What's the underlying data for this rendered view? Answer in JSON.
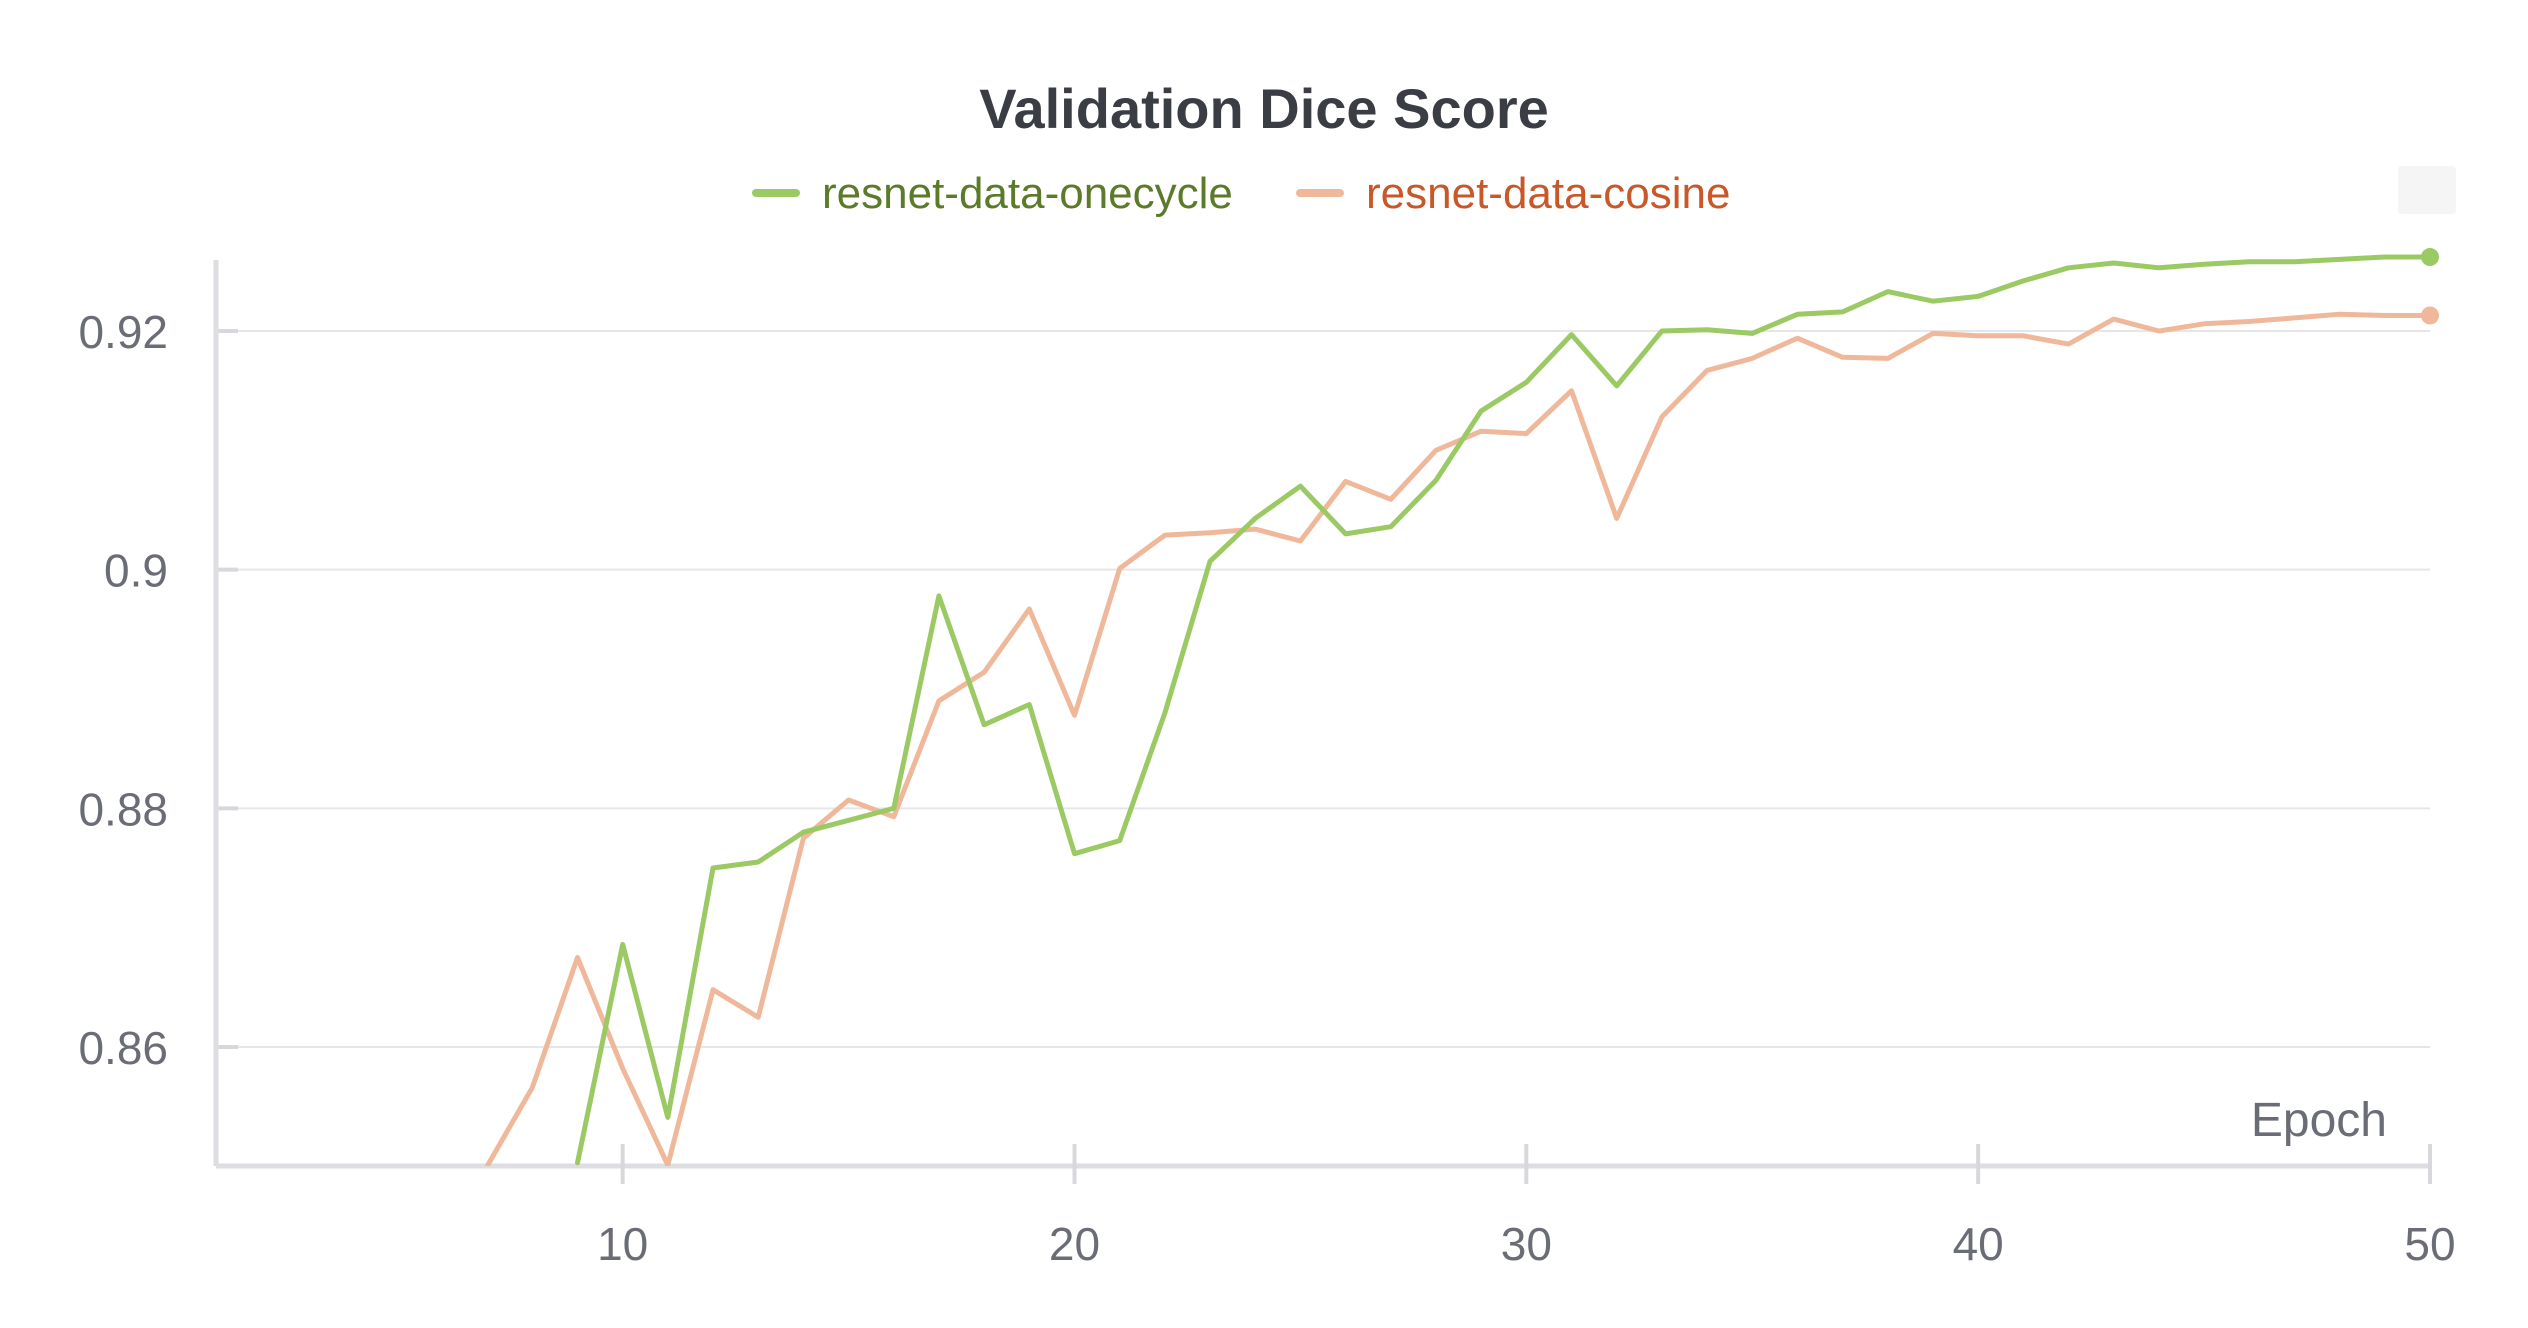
{
  "chart_data": {
    "type": "line",
    "title": "Validation Dice Score",
    "xlabel": "Epoch",
    "ylabel": "",
    "xlim": [
      1,
      50
    ],
    "ylim": [
      0.85,
      0.928
    ],
    "xticks": [
      10,
      20,
      30,
      40,
      50
    ],
    "yticks": [
      0.86,
      0.88,
      0.9,
      0.92
    ],
    "ytick_labels": [
      "0.86",
      "0.88",
      "0.9",
      "0.92"
    ],
    "xtick_labels": [
      "10",
      "20",
      "30",
      "40",
      "50"
    ],
    "grid": true,
    "legend_position": "top-center",
    "series": [
      {
        "name": "resnet-data-onecycle",
        "color": "#9bc963",
        "label_color": "#5b7a2a",
        "x": [
          9,
          10,
          11,
          12,
          13,
          14,
          15,
          16,
          17,
          18,
          19,
          20,
          21,
          22,
          23,
          24,
          25,
          26,
          27,
          28,
          29,
          30,
          31,
          32,
          33,
          34,
          35,
          36,
          37,
          38,
          39,
          40,
          41,
          42,
          43,
          44,
          45,
          46,
          47,
          48,
          49,
          50
        ],
        "values": [
          0.8503,
          0.8686,
          0.8541,
          0.875,
          0.8755,
          0.878,
          0.879,
          0.88,
          0.8978,
          0.887,
          0.8887,
          0.8762,
          0.8773,
          0.888,
          0.9007,
          0.9043,
          0.907,
          0.903,
          0.9036,
          0.9075,
          0.9133,
          0.9157,
          0.9197,
          0.9154,
          0.92,
          0.9201,
          0.9198,
          0.9214,
          0.9216,
          0.9233,
          0.9225,
          0.9229,
          0.9242,
          0.9253,
          0.9257,
          0.9253,
          0.9256,
          0.9258,
          0.9258,
          0.926,
          0.9262,
          0.9262
        ]
      },
      {
        "name": "resnet-data-cosine",
        "color": "#f0b89a",
        "label_color": "#c8572a",
        "x": [
          7,
          8,
          9,
          10,
          11,
          12,
          13,
          14,
          15,
          16,
          17,
          18,
          19,
          20,
          21,
          22,
          23,
          24,
          25,
          26,
          27,
          28,
          29,
          30,
          31,
          32,
          33,
          34,
          35,
          36,
          37,
          38,
          39,
          40,
          41,
          42,
          43,
          44,
          45,
          46,
          47,
          48,
          49,
          50
        ],
        "values": [
          0.85,
          0.8566,
          0.8675,
          0.8582,
          0.8501,
          0.8648,
          0.8625,
          0.8775,
          0.8807,
          0.8793,
          0.889,
          0.8914,
          0.8967,
          0.8878,
          0.9001,
          0.9029,
          0.9031,
          0.9034,
          0.9024,
          0.9074,
          0.9059,
          0.91,
          0.9116,
          0.9114,
          0.915,
          0.9043,
          0.9128,
          0.9167,
          0.9177,
          0.9194,
          0.9178,
          0.9177,
          0.9198,
          0.9196,
          0.9196,
          0.9189,
          0.921,
          0.92,
          0.9206,
          0.9208,
          0.9211,
          0.9214,
          0.9213,
          0.9213
        ]
      }
    ]
  }
}
